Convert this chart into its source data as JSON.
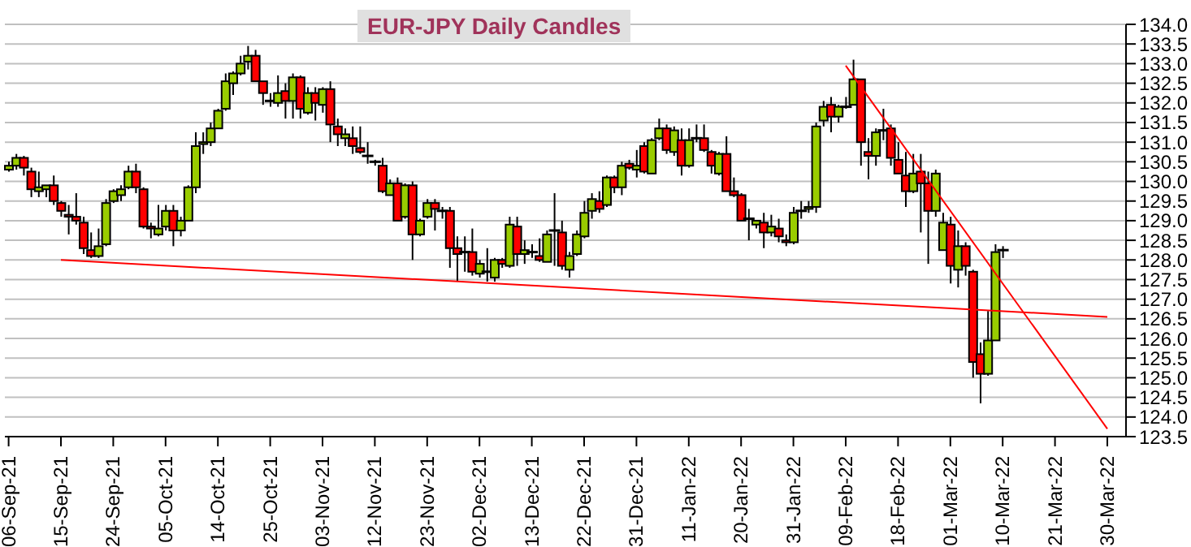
{
  "chart_data": {
    "type": "candlestick",
    "title": "EUR-JPY Daily Candles",
    "categories": [
      "06-Sep-21",
      null,
      null,
      null,
      null,
      null,
      null,
      "15-Sep-21",
      null,
      null,
      null,
      null,
      null,
      null,
      "24-Sep-21",
      null,
      null,
      null,
      null,
      null,
      null,
      "05-Oct-21",
      null,
      null,
      null,
      null,
      null,
      null,
      "14-Oct-21",
      null,
      null,
      null,
      null,
      null,
      null,
      "25-Oct-21",
      null,
      null,
      null,
      null,
      null,
      null,
      "03-Nov-21",
      null,
      null,
      null,
      null,
      null,
      null,
      "12-Nov-21",
      null,
      null,
      null,
      null,
      null,
      null,
      "23-Nov-21",
      null,
      null,
      null,
      null,
      null,
      null,
      "02-Dec-21",
      null,
      null,
      null,
      null,
      null,
      null,
      "13-Dec-21",
      null,
      null,
      null,
      null,
      null,
      null,
      "22-Dec-21",
      null,
      null,
      null,
      null,
      null,
      null,
      "31-Dec-21",
      null,
      null,
      null,
      null,
      null,
      null,
      "11-Jan-22",
      null,
      null,
      null,
      null,
      null,
      null,
      "20-Jan-22",
      null,
      null,
      null,
      null,
      null,
      null,
      "31-Jan-22",
      null,
      null,
      null,
      null,
      null,
      null,
      "09-Feb-22",
      null,
      null,
      null,
      null,
      null,
      null,
      "18-Feb-22",
      null,
      null,
      null,
      null,
      null,
      null,
      "01-Mar-22",
      null,
      null,
      null,
      null,
      null,
      null,
      "10-Mar-22",
      null,
      null,
      null,
      null,
      null,
      null,
      "21-Mar-22",
      null,
      null,
      null,
      null,
      null,
      null,
      "30-Mar-22",
      null,
      null
    ],
    "ohlc": [
      [
        130.3,
        130.5,
        130.25,
        130.4
      ],
      [
        130.4,
        130.7,
        130.3,
        130.6
      ],
      [
        130.6,
        130.65,
        130.15,
        130.35
      ],
      [
        130.25,
        130.35,
        129.6,
        129.8
      ],
      [
        129.75,
        130.25,
        129.6,
        129.85
      ],
      [
        129.8,
        129.9,
        129.6,
        129.9
      ],
      [
        129.9,
        130.15,
        129.4,
        129.5
      ],
      [
        129.45,
        129.5,
        129.1,
        129.25
      ],
      [
        129.15,
        129.4,
        128.65,
        129.1
      ],
      [
        129.1,
        129.7,
        128.9,
        129.0
      ],
      [
        128.95,
        129.1,
        128.15,
        128.3
      ],
      [
        128.25,
        128.7,
        128.05,
        128.1
      ],
      [
        128.1,
        128.8,
        128.05,
        128.35
      ],
      [
        128.4,
        129.55,
        128.35,
        129.45
      ],
      [
        129.5,
        129.8,
        129.45,
        129.75
      ],
      [
        129.65,
        129.9,
        129.5,
        129.8
      ],
      [
        129.85,
        130.4,
        129.8,
        130.25
      ],
      [
        130.25,
        130.45,
        129.7,
        129.85
      ],
      [
        129.8,
        129.85,
        128.8,
        128.85
      ],
      [
        128.85,
        128.95,
        128.55,
        128.8
      ],
      [
        128.65,
        129.4,
        128.6,
        128.8
      ],
      [
        128.85,
        129.4,
        128.75,
        129.25
      ],
      [
        129.25,
        129.4,
        128.35,
        128.75
      ],
      [
        128.75,
        129.1,
        128.6,
        129.0
      ],
      [
        129.0,
        129.9,
        129.0,
        129.85
      ],
      [
        129.85,
        131.25,
        129.7,
        130.9
      ],
      [
        130.95,
        131.25,
        130.7,
        131.0
      ],
      [
        131.0,
        131.5,
        130.9,
        131.35
      ],
      [
        131.35,
        131.85,
        131.35,
        131.8
      ],
      [
        131.85,
        132.75,
        131.8,
        132.55
      ],
      [
        132.5,
        132.8,
        132.2,
        132.75
      ],
      [
        132.75,
        133.2,
        132.7,
        133.0
      ],
      [
        133.05,
        133.45,
        132.85,
        133.2
      ],
      [
        133.2,
        133.35,
        132.55,
        132.55
      ],
      [
        132.55,
        132.55,
        131.95,
        132.25
      ],
      [
        132.05,
        132.25,
        131.9,
        132.05
      ],
      [
        132.0,
        132.7,
        131.9,
        132.25
      ],
      [
        132.3,
        132.5,
        131.6,
        132.05
      ],
      [
        132.05,
        132.75,
        131.6,
        132.65
      ],
      [
        132.65,
        132.7,
        131.6,
        131.85
      ],
      [
        131.75,
        132.4,
        131.7,
        132.25
      ],
      [
        132.25,
        132.4,
        131.55,
        132.0
      ],
      [
        131.95,
        132.4,
        131.75,
        132.35
      ],
      [
        132.35,
        132.55,
        131.0,
        131.45
      ],
      [
        131.4,
        131.6,
        130.9,
        131.2
      ],
      [
        131.1,
        131.35,
        130.9,
        131.2
      ],
      [
        131.1,
        131.4,
        130.7,
        130.9
      ],
      [
        130.85,
        131.4,
        130.7,
        130.75
      ],
      [
        130.65,
        131.0,
        130.45,
        130.65
      ],
      [
        130.5,
        130.55,
        130.4,
        130.5
      ],
      [
        130.4,
        130.6,
        129.7,
        129.75
      ],
      [
        129.65,
        130.05,
        129.65,
        129.95
      ],
      [
        129.95,
        130.1,
        129.0,
        129.0
      ],
      [
        129.1,
        129.95,
        129.05,
        129.9
      ],
      [
        129.9,
        130.0,
        128.0,
        128.65
      ],
      [
        128.65,
        129.05,
        128.6,
        129.0
      ],
      [
        129.1,
        129.55,
        129.05,
        129.45
      ],
      [
        129.45,
        129.55,
        128.75,
        129.3
      ],
      [
        129.25,
        129.35,
        129.05,
        129.25
      ],
      [
        129.25,
        129.35,
        127.8,
        128.3
      ],
      [
        128.3,
        128.6,
        127.45,
        128.15
      ],
      [
        128.2,
        128.6,
        127.7,
        128.2
      ],
      [
        128.2,
        128.8,
        127.6,
        127.7
      ],
      [
        127.65,
        128.0,
        127.55,
        127.9
      ],
      [
        127.7,
        128.3,
        127.45,
        127.7
      ],
      [
        127.55,
        128.05,
        127.45,
        128.0
      ],
      [
        128.0,
        128.05,
        127.8,
        127.9
      ],
      [
        127.85,
        129.1,
        127.8,
        128.9
      ],
      [
        128.85,
        129.1,
        127.85,
        128.15
      ],
      [
        128.15,
        128.5,
        127.9,
        128.25
      ],
      [
        128.2,
        128.4,
        128.05,
        128.2
      ],
      [
        128.1,
        128.55,
        127.95,
        128.0
      ],
      [
        127.95,
        128.75,
        127.95,
        128.65
      ],
      [
        128.75,
        129.7,
        127.85,
        128.75
      ],
      [
        128.7,
        129.0,
        127.75,
        127.85
      ],
      [
        127.75,
        128.2,
        127.55,
        128.1
      ],
      [
        128.15,
        128.75,
        128.1,
        128.65
      ],
      [
        128.6,
        129.5,
        128.55,
        129.2
      ],
      [
        129.25,
        129.7,
        129.05,
        129.55
      ],
      [
        129.5,
        129.75,
        129.2,
        129.3
      ],
      [
        129.4,
        130.15,
        129.35,
        130.1
      ],
      [
        130.1,
        130.15,
        129.7,
        129.85
      ],
      [
        129.85,
        130.5,
        129.65,
        130.4
      ],
      [
        130.45,
        130.55,
        130.3,
        130.35
      ],
      [
        130.3,
        130.8,
        130.1,
        130.4
      ],
      [
        130.9,
        131.0,
        130.2,
        130.25
      ],
      [
        130.2,
        131.1,
        130.2,
        131.05
      ],
      [
        131.1,
        131.6,
        131.05,
        131.35
      ],
      [
        131.35,
        131.45,
        130.7,
        130.8
      ],
      [
        130.75,
        131.4,
        130.65,
        131.3
      ],
      [
        131.05,
        131.35,
        130.15,
        130.4
      ],
      [
        130.4,
        131.35,
        130.35,
        131.05
      ],
      [
        131.1,
        131.45,
        131.0,
        131.1
      ],
      [
        131.1,
        131.45,
        130.75,
        130.8
      ],
      [
        130.75,
        130.8,
        130.2,
        130.4
      ],
      [
        130.2,
        130.75,
        130.15,
        130.7
      ],
      [
        130.7,
        131.15,
        129.75,
        129.75
      ],
      [
        129.75,
        130.1,
        129.6,
        129.65
      ],
      [
        129.65,
        129.7,
        129.0,
        129.0
      ],
      [
        129.05,
        129.3,
        128.5,
        129.05
      ],
      [
        128.9,
        129.0,
        128.8,
        129.0
      ],
      [
        128.95,
        129.2,
        128.3,
        128.7
      ],
      [
        128.7,
        129.15,
        128.6,
        128.85
      ],
      [
        128.8,
        129.05,
        128.45,
        128.6
      ],
      [
        128.5,
        128.65,
        128.35,
        128.45
      ],
      [
        128.45,
        129.35,
        128.4,
        129.2
      ],
      [
        129.25,
        129.5,
        129.05,
        129.25
      ],
      [
        129.3,
        129.5,
        129.2,
        129.35
      ],
      [
        129.35,
        131.5,
        129.2,
        131.4
      ],
      [
        131.55,
        132.05,
        131.4,
        131.9
      ],
      [
        131.95,
        132.15,
        131.25,
        131.65
      ],
      [
        131.65,
        131.95,
        131.5,
        131.9
      ],
      [
        131.9,
        132.15,
        131.85,
        131.9
      ],
      [
        131.95,
        133.1,
        131.95,
        132.6
      ],
      [
        132.6,
        132.6,
        130.4,
        131.0
      ],
      [
        130.75,
        131.1,
        130.05,
        130.65
      ],
      [
        130.65,
        131.35,
        130.4,
        131.25
      ],
      [
        131.3,
        131.85,
        131.05,
        131.3
      ],
      [
        131.35,
        131.45,
        130.4,
        130.6
      ],
      [
        130.55,
        131.0,
        130.2,
        130.2
      ],
      [
        130.15,
        130.75,
        129.35,
        129.75
      ],
      [
        129.75,
        130.7,
        129.7,
        130.2
      ],
      [
        130.25,
        130.7,
        128.7,
        129.95
      ],
      [
        129.95,
        130.25,
        127.9,
        129.25
      ],
      [
        129.25,
        130.3,
        129.1,
        130.2
      ],
      [
        128.25,
        129.2,
        128.25,
        128.95
      ],
      [
        128.9,
        129.1,
        127.4,
        127.85
      ],
      [
        127.75,
        128.75,
        127.3,
        128.35
      ],
      [
        128.35,
        128.45,
        127.6,
        127.85
      ],
      [
        127.7,
        127.75,
        125.0,
        125.4
      ],
      [
        125.6,
        125.9,
        124.35,
        125.1
      ],
      [
        125.1,
        126.7,
        125.05,
        125.95
      ],
      [
        125.95,
        128.4,
        125.95,
        128.2
      ],
      [
        128.25,
        128.35,
        128.05,
        128.25
      ],
      null,
      null,
      null,
      null,
      null,
      null,
      null,
      null,
      null,
      null,
      null,
      null,
      null,
      null,
      null,
      null
    ],
    "series": [
      {
        "type": "line",
        "color": "#ff0000",
        "x": [
          "15-Sep-21",
          "30-Mar-22"
        ],
        "values": [
          128.0,
          126.55
        ]
      },
      {
        "type": "line",
        "color": "#ff0000",
        "x": [
          "09-Feb-22",
          "30-Mar-22"
        ],
        "values": [
          132.95,
          123.7
        ]
      }
    ],
    "ylim": [
      123.5,
      134.0
    ],
    "yticks": [
      {
        "value": 123.5,
        "label": "123.5"
      },
      {
        "value": 124,
        "label": "124.0"
      },
      {
        "value": 124.5,
        "label": "124.5"
      },
      {
        "value": 125,
        "label": "125.0"
      },
      {
        "value": 125.5,
        "label": "125.5"
      },
      {
        "value": 126,
        "label": "126.0"
      },
      {
        "value": 126.5,
        "label": "126.5"
      },
      {
        "value": 127,
        "label": "127.0"
      },
      {
        "value": 127.5,
        "label": "127.5"
      },
      {
        "value": 128,
        "label": "128.0"
      },
      {
        "value": 128.5,
        "label": "128.5"
      },
      {
        "value": 129,
        "label": "129.0"
      },
      {
        "value": 129.5,
        "label": "129.5"
      },
      {
        "value": 130,
        "label": "130.0"
      },
      {
        "value": 130.5,
        "label": "130.5"
      },
      {
        "value": 131,
        "label": "131.0"
      },
      {
        "value": 131.5,
        "label": "131.5"
      },
      {
        "value": 132,
        "label": "132.0"
      },
      {
        "value": 132.5,
        "label": "132.5"
      },
      {
        "value": 133,
        "label": "133.0"
      },
      {
        "value": 133.5,
        "label": "133.5"
      },
      {
        "value": 134,
        "label": "134.0"
      }
    ],
    "grid": "y"
  }
}
